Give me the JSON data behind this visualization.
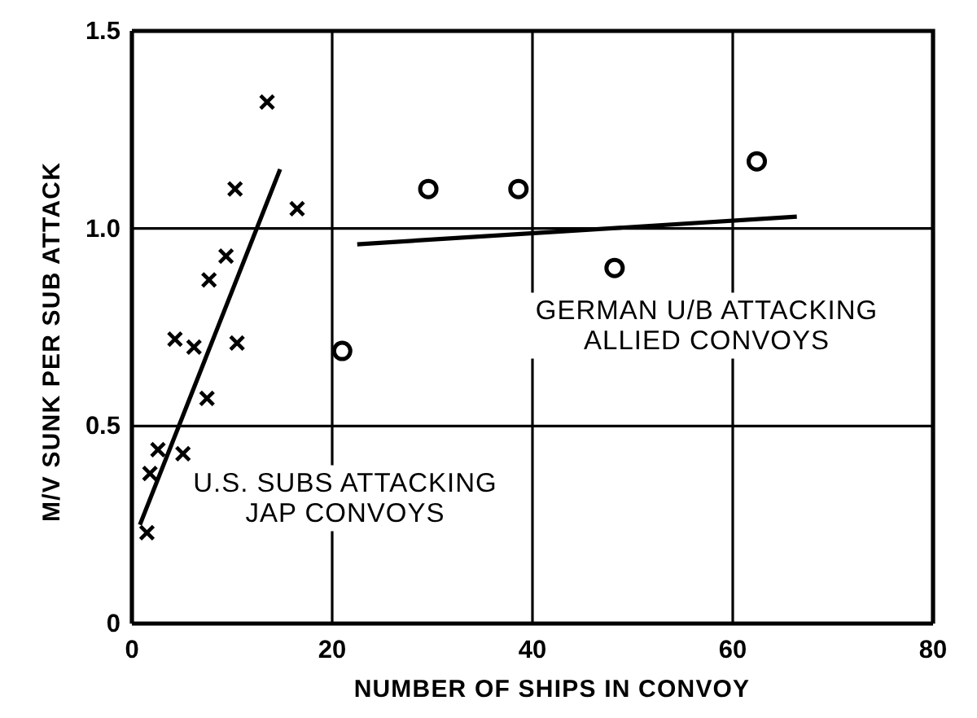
{
  "chart_data": {
    "type": "scatter",
    "xlabel": "NUMBER OF SHIPS IN CONVOY",
    "ylabel": "M/V SUNK PER SUB ATTACK",
    "xlim": [
      0,
      80
    ],
    "ylim": [
      0,
      1.5
    ],
    "xticks": [
      0,
      20,
      40,
      60,
      80
    ],
    "yticks": [
      0,
      0.5,
      {
        "value": 1,
        "label": "1.0"
      },
      1.5
    ],
    "grid": true,
    "series": [
      {
        "marker": "cross",
        "color": "#000000",
        "x": [
          1.5,
          1.8,
          2.6,
          4.3,
          5.1,
          6.2,
          7.5,
          7.7,
          9.4,
          10.3,
          10.5,
          13.5,
          16.5
        ],
        "values": [
          0.23,
          0.38,
          0.44,
          0.72,
          0.43,
          0.7,
          0.57,
          0.87,
          0.93,
          1.1,
          0.71,
          1.32,
          1.05
        ]
      },
      {
        "type": "line",
        "color": "#000000",
        "x": [
          0.8,
          14.8
        ],
        "values": [
          0.25,
          1.15
        ]
      },
      {
        "marker": "circle",
        "color": "#000000",
        "x": [
          21,
          29.6,
          38.6,
          48.2,
          62.4
        ],
        "values": [
          0.69,
          1.1,
          1.1,
          0.9,
          1.17
        ]
      },
      {
        "type": "line",
        "color": "#000000",
        "x": [
          22.5,
          66.4
        ],
        "values": [
          0.96,
          1.03
        ]
      }
    ],
    "annotations": [
      "U.S. SUBS ATTACKING\nJAP CONVOYS",
      "GERMAN U/B ATTACKING\nALLIED CONVOYS"
    ]
  }
}
